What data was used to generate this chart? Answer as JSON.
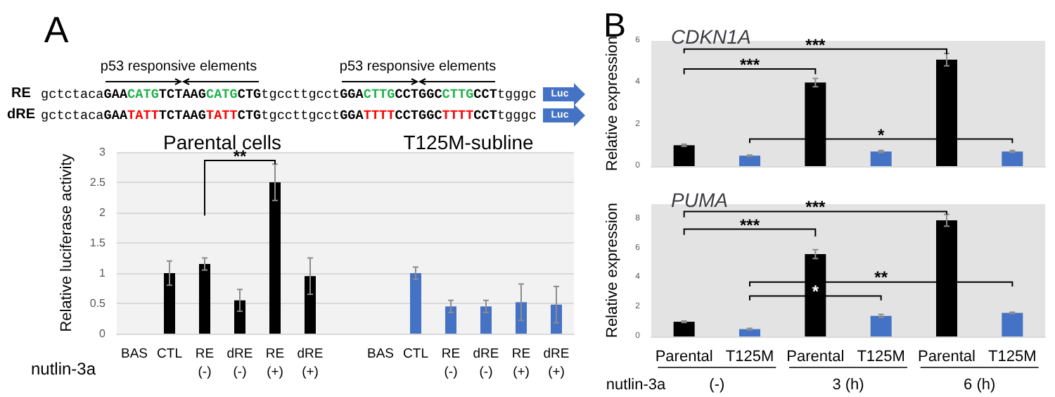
{
  "chart_data": [
    {
      "type": "other",
      "annotations": [
        "A",
        "p53 responsive elements",
        "p53 responsive elements",
        "RE",
        "gctctacaGAACATGTCTAAGCATGCTGtgccttgcctGGACTTGCCTGGCCTTGCCTtgggc",
        "dRE",
        "gctctacaGAATATTTCTAAGTATTCTGtgccttgcctGGATTTTCCTGGCTTTTCCTtgggc",
        "Luc",
        "Luc"
      ]
    },
    {
      "type": "bar",
      "ylabel": "Relative luciferase activity",
      "categories": [
        "BAS",
        "CTL",
        "RE\n(-)",
        "dRE\n(-)",
        "RE\n(+)",
        "dRE\n(+)",
        null,
        "BAS",
        "CTL",
        "RE\n(-)",
        "dRE\n(-)",
        "RE\n(+)",
        "dRE\n(+)"
      ],
      "values": [
        null,
        1.0,
        1.15,
        0.55,
        2.5,
        0.95,
        null,
        null,
        1.0,
        0.45,
        0.45,
        0.52,
        0.48
      ],
      "errors": [
        null,
        0.2,
        0.1,
        0.18,
        0.3,
        0.3,
        null,
        null,
        0.1,
        0.1,
        0.1,
        0.3,
        0.3
      ],
      "colors": [
        "#000000",
        "#000000",
        "#000000",
        "#000000",
        "#000000",
        "#000000",
        "#000000",
        "#4472c4",
        "#4472c4",
        "#4472c4",
        "#4472c4",
        "#4472c4",
        "#4472c4"
      ],
      "ylim": [
        0,
        3
      ],
      "yticks": [
        0,
        0.5,
        1,
        1.5,
        2,
        2.5,
        3
      ],
      "grid": "y",
      "annotations": [
        "Parental cells",
        "T125M-subline",
        "**",
        "nutlin-3a"
      ]
    },
    {
      "type": "bar",
      "title": "CDKN1A",
      "ylabel": "Relative expression",
      "categories": [
        null,
        null,
        null,
        null,
        null,
        null
      ],
      "values": [
        1.0,
        0.5,
        4.0,
        0.7,
        5.1,
        0.7
      ],
      "errors": [
        0.05,
        0.03,
        0.2,
        0.05,
        0.3,
        0.05
      ],
      "colors": [
        "#000000",
        "#4472c4",
        "#000000",
        "#4472c4",
        "#000000",
        "#4472c4"
      ],
      "ylim": [
        0,
        6
      ],
      "yticks": [
        0,
        2,
        4,
        6
      ],
      "annotations": [
        "B",
        "***",
        "***",
        "*"
      ]
    },
    {
      "type": "bar",
      "title": "PUMA",
      "ylabel": "Relative expression",
      "categories": [
        "Parental",
        "T125M",
        "Parental",
        "T125M",
        "Parental",
        "T125M"
      ],
      "values": [
        1.0,
        0.5,
        5.6,
        1.4,
        7.9,
        1.6
      ],
      "errors": [
        0.05,
        0.05,
        0.3,
        0.1,
        0.4,
        0.05
      ],
      "colors": [
        "#000000",
        "#4472c4",
        "#000000",
        "#4472c4",
        "#000000",
        "#4472c4"
      ],
      "ylim": [
        0,
        9
      ],
      "yticks": [
        0,
        2,
        4,
        6,
        8
      ],
      "annotations": [
        "***",
        "***",
        "**",
        "*",
        "nutlin-3a",
        "(-)",
        "3 (h)",
        "6 (h)"
      ]
    }
  ]
}
